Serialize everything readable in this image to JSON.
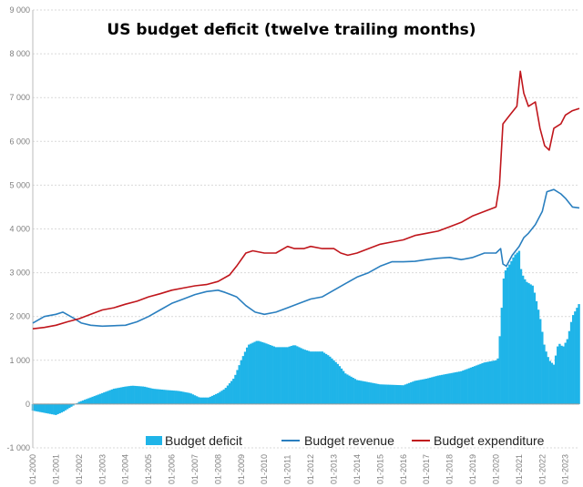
{
  "chart_data": {
    "type": "bar+line",
    "title": "US budget deficit (twelve trailing months)",
    "ylim": [
      -1000,
      9000
    ],
    "yticks": [
      -1000,
      0,
      1000,
      2000,
      3000,
      4000,
      5000,
      6000,
      7000,
      8000,
      9000
    ],
    "ytick_labels": [
      "-1 000",
      "0",
      "1 000",
      "2 000",
      "3 000",
      "4 000",
      "5 000",
      "6 000",
      "7 000",
      "8 000",
      "9 000"
    ],
    "xlim": [
      2000.0,
      2023.6
    ],
    "xtick_labels": [
      "01-2000",
      "01-2001",
      "01-2002",
      "01-2003",
      "01-2004",
      "01-2005",
      "01-2006",
      "01-2007",
      "01-2008",
      "01-2009",
      "01-2010",
      "01-2011",
      "01-2012",
      "01-2013",
      "01-2014",
      "01-2015",
      "01-2016",
      "01-2017",
      "01-2018",
      "01-2019",
      "01-2020",
      "01-2021",
      "01-2022",
      "01-2023"
    ],
    "xtick_positions": [
      2000,
      2001,
      2002,
      2003,
      2004,
      2005,
      2006,
      2007,
      2008,
      2009,
      2010,
      2011,
      2012,
      2013,
      2014,
      2015,
      2016,
      2017,
      2018,
      2019,
      2020,
      2021,
      2022,
      2023
    ],
    "series": [
      {
        "name": "Budget deficit",
        "kind": "bar",
        "color": "#1fb4e8",
        "points": [
          [
            2000.0,
            -150
          ],
          [
            2000.5,
            -200
          ],
          [
            2001.0,
            -250
          ],
          [
            2001.3,
            -180
          ],
          [
            2001.7,
            -50
          ],
          [
            2002.0,
            50
          ],
          [
            2002.5,
            150
          ],
          [
            2003.0,
            250
          ],
          [
            2003.5,
            350
          ],
          [
            2004.0,
            400
          ],
          [
            2004.3,
            420
          ],
          [
            2004.8,
            400
          ],
          [
            2005.2,
            350
          ],
          [
            2005.8,
            320
          ],
          [
            2006.3,
            300
          ],
          [
            2006.8,
            250
          ],
          [
            2007.2,
            150
          ],
          [
            2007.6,
            150
          ],
          [
            2008.0,
            250
          ],
          [
            2008.3,
            350
          ],
          [
            2008.7,
            600
          ],
          [
            2009.0,
            1000
          ],
          [
            2009.3,
            1350
          ],
          [
            2009.7,
            1450
          ],
          [
            2010.0,
            1400
          ],
          [
            2010.5,
            1300
          ],
          [
            2011.0,
            1300
          ],
          [
            2011.3,
            1350
          ],
          [
            2011.7,
            1250
          ],
          [
            2012.0,
            1200
          ],
          [
            2012.5,
            1200
          ],
          [
            2012.8,
            1100
          ],
          [
            2013.2,
            900
          ],
          [
            2013.5,
            700
          ],
          [
            2014.0,
            550
          ],
          [
            2014.5,
            500
          ],
          [
            2015.0,
            450
          ],
          [
            2015.5,
            440
          ],
          [
            2016.0,
            430
          ],
          [
            2016.5,
            530
          ],
          [
            2017.0,
            580
          ],
          [
            2017.5,
            650
          ],
          [
            2018.0,
            700
          ],
          [
            2018.5,
            750
          ],
          [
            2019.0,
            850
          ],
          [
            2019.5,
            950
          ],
          [
            2020.0,
            1000
          ],
          [
            2020.1,
            1050
          ],
          [
            2020.2,
            1800
          ],
          [
            2020.35,
            3000
          ],
          [
            2020.6,
            3200
          ],
          [
            2020.8,
            3400
          ],
          [
            2021.0,
            3500
          ],
          [
            2021.1,
            3000
          ],
          [
            2021.3,
            2800
          ],
          [
            2021.6,
            2700
          ],
          [
            2021.9,
            2000
          ],
          [
            2022.1,
            1300
          ],
          [
            2022.3,
            1000
          ],
          [
            2022.5,
            900
          ],
          [
            2022.7,
            1400
          ],
          [
            2022.9,
            1300
          ],
          [
            2023.1,
            1500
          ],
          [
            2023.3,
            2000
          ],
          [
            2023.6,
            2300
          ]
        ]
      },
      {
        "name": "Budget revenue",
        "kind": "line",
        "color": "#2a7fbf",
        "points": [
          [
            2000.0,
            1850
          ],
          [
            2000.5,
            2000
          ],
          [
            2001.0,
            2050
          ],
          [
            2001.3,
            2100
          ],
          [
            2001.8,
            1950
          ],
          [
            2002.1,
            1850
          ],
          [
            2002.5,
            1800
          ],
          [
            2003.0,
            1780
          ],
          [
            2003.5,
            1790
          ],
          [
            2004.0,
            1800
          ],
          [
            2004.5,
            1880
          ],
          [
            2005.0,
            2000
          ],
          [
            2005.5,
            2150
          ],
          [
            2006.0,
            2300
          ],
          [
            2006.5,
            2400
          ],
          [
            2007.0,
            2500
          ],
          [
            2007.5,
            2570
          ],
          [
            2008.0,
            2600
          ],
          [
            2008.3,
            2550
          ],
          [
            2008.8,
            2450
          ],
          [
            2009.2,
            2250
          ],
          [
            2009.6,
            2100
          ],
          [
            2010.0,
            2050
          ],
          [
            2010.5,
            2100
          ],
          [
            2011.0,
            2200
          ],
          [
            2011.5,
            2300
          ],
          [
            2012.0,
            2400
          ],
          [
            2012.5,
            2450
          ],
          [
            2013.0,
            2600
          ],
          [
            2013.5,
            2750
          ],
          [
            2014.0,
            2900
          ],
          [
            2014.5,
            3000
          ],
          [
            2015.0,
            3150
          ],
          [
            2015.5,
            3250
          ],
          [
            2016.0,
            3250
          ],
          [
            2016.5,
            3260
          ],
          [
            2017.0,
            3300
          ],
          [
            2017.5,
            3330
          ],
          [
            2018.0,
            3350
          ],
          [
            2018.5,
            3300
          ],
          [
            2019.0,
            3350
          ],
          [
            2019.5,
            3450
          ],
          [
            2020.0,
            3450
          ],
          [
            2020.2,
            3550
          ],
          [
            2020.3,
            3200
          ],
          [
            2020.45,
            3150
          ],
          [
            2020.7,
            3400
          ],
          [
            2021.0,
            3600
          ],
          [
            2021.2,
            3800
          ],
          [
            2021.4,
            3900
          ],
          [
            2021.7,
            4100
          ],
          [
            2022.0,
            4400
          ],
          [
            2022.2,
            4850
          ],
          [
            2022.5,
            4900
          ],
          [
            2022.8,
            4800
          ],
          [
            2023.0,
            4700
          ],
          [
            2023.3,
            4500
          ],
          [
            2023.6,
            4480
          ]
        ]
      },
      {
        "name": "Budget expenditure",
        "kind": "line",
        "color": "#c0161c",
        "points": [
          [
            2000.0,
            1720
          ],
          [
            2000.5,
            1750
          ],
          [
            2001.0,
            1800
          ],
          [
            2001.5,
            1880
          ],
          [
            2002.0,
            1950
          ],
          [
            2002.5,
            2050
          ],
          [
            2003.0,
            2150
          ],
          [
            2003.5,
            2200
          ],
          [
            2004.0,
            2280
          ],
          [
            2004.5,
            2350
          ],
          [
            2005.0,
            2450
          ],
          [
            2005.5,
            2520
          ],
          [
            2006.0,
            2600
          ],
          [
            2006.5,
            2650
          ],
          [
            2007.0,
            2700
          ],
          [
            2007.5,
            2730
          ],
          [
            2008.0,
            2800
          ],
          [
            2008.5,
            2950
          ],
          [
            2008.8,
            3150
          ],
          [
            2009.2,
            3450
          ],
          [
            2009.5,
            3500
          ],
          [
            2010.0,
            3450
          ],
          [
            2010.5,
            3450
          ],
          [
            2011.0,
            3600
          ],
          [
            2011.3,
            3550
          ],
          [
            2011.7,
            3550
          ],
          [
            2012.0,
            3600
          ],
          [
            2012.5,
            3550
          ],
          [
            2013.0,
            3550
          ],
          [
            2013.3,
            3450
          ],
          [
            2013.6,
            3400
          ],
          [
            2014.0,
            3450
          ],
          [
            2014.5,
            3550
          ],
          [
            2015.0,
            3650
          ],
          [
            2015.5,
            3700
          ],
          [
            2016.0,
            3750
          ],
          [
            2016.5,
            3850
          ],
          [
            2017.0,
            3900
          ],
          [
            2017.5,
            3950
          ],
          [
            2018.0,
            4050
          ],
          [
            2018.5,
            4150
          ],
          [
            2019.0,
            4300
          ],
          [
            2019.5,
            4400
          ],
          [
            2020.0,
            4500
          ],
          [
            2020.15,
            5000
          ],
          [
            2020.3,
            6400
          ],
          [
            2020.6,
            6600
          ],
          [
            2020.9,
            6800
          ],
          [
            2021.05,
            7600
          ],
          [
            2021.2,
            7100
          ],
          [
            2021.4,
            6800
          ],
          [
            2021.7,
            6900
          ],
          [
            2021.9,
            6300
          ],
          [
            2022.1,
            5900
          ],
          [
            2022.3,
            5800
          ],
          [
            2022.5,
            6300
          ],
          [
            2022.8,
            6400
          ],
          [
            2023.0,
            6600
          ],
          [
            2023.3,
            6700
          ],
          [
            2023.6,
            6750
          ]
        ]
      }
    ],
    "legend": {
      "placement": "bottom",
      "entries": [
        "Budget deficit",
        "Budget revenue",
        "Budget expenditure"
      ]
    },
    "grid": true
  }
}
